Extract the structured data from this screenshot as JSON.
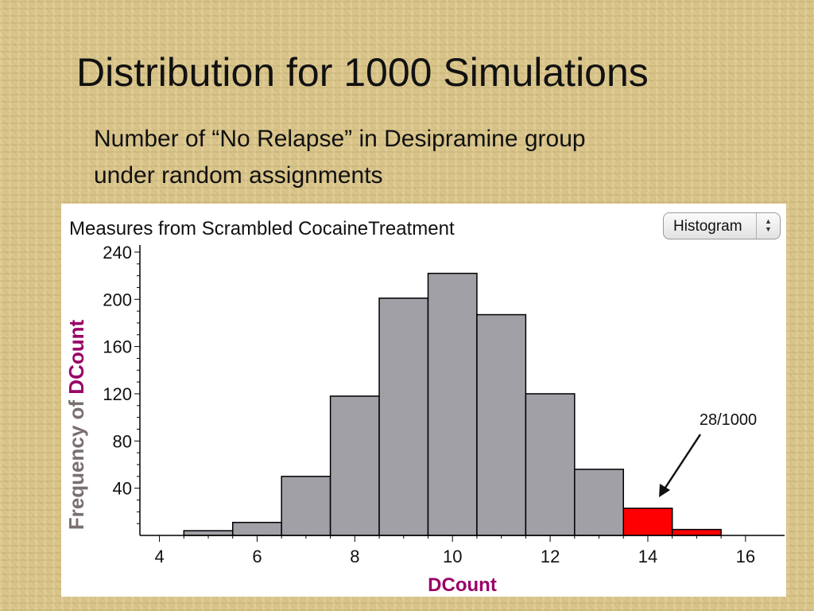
{
  "slide": {
    "title": "Distribution for 1000 Simulations",
    "subtitle_line1": "Number of “No Relapse” in Desipramine group",
    "subtitle_line2": "under random assignments"
  },
  "panel": {
    "title": "Measures from Scrambled CocaineTreatment",
    "display_select": {
      "value": "Histogram",
      "arrows_icon": "up-down-arrows-icon"
    }
  },
  "chart_data": {
    "type": "bar",
    "subtype": "histogram",
    "bin_width": 1,
    "x": [
      5,
      6,
      7,
      8,
      9,
      10,
      11,
      12,
      13,
      14,
      15
    ],
    "values": [
      4,
      11,
      50,
      118,
      201,
      222,
      187,
      120,
      56,
      23,
      5
    ],
    "highlighted": [
      false,
      false,
      false,
      false,
      false,
      false,
      false,
      false,
      false,
      true,
      true
    ],
    "xlabel": "DCount",
    "ylabel_prefix": "Frequency of ",
    "ylabel_var": "DCount",
    "xlim": [
      3.6,
      16.8
    ],
    "ylim": [
      0,
      246
    ],
    "x_ticks": [
      4,
      6,
      8,
      10,
      12,
      14,
      16
    ],
    "y_ticks": [
      40,
      80,
      120,
      160,
      200,
      240
    ],
    "grid": false,
    "annotation": "28/1000",
    "colors": {
      "bar": "#a0a0a6",
      "highlight": "#ff0000",
      "bar_outline": "#000000",
      "axis_var_label": "#990066",
      "ylabel_prefix": "#7a6f6f"
    }
  }
}
